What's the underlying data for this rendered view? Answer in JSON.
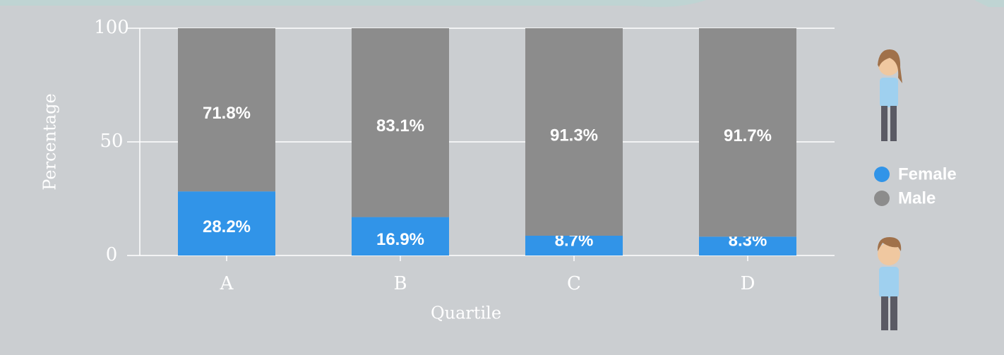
{
  "chart_data": {
    "type": "stacked-bar",
    "x_label": "Quartile",
    "y_label": "Percentage",
    "categories": [
      "A",
      "B",
      "C",
      "D"
    ],
    "series": [
      {
        "name": "Female",
        "color": "#3194e8",
        "values": [
          28.2,
          16.9,
          8.7,
          8.3
        ],
        "value_labels": [
          "28.2%",
          "16.9%",
          "8.7%",
          "8.3%"
        ]
      },
      {
        "name": "Male",
        "color": "#8c8c8c",
        "values": [
          71.8,
          83.1,
          91.3,
          91.7
        ],
        "value_labels": [
          "71.8%",
          "83.1%",
          "91.3%",
          "91.7%"
        ]
      }
    ],
    "ylim": [
      0,
      100
    ],
    "yticks": [
      0,
      50,
      100
    ],
    "grid": true
  }
}
